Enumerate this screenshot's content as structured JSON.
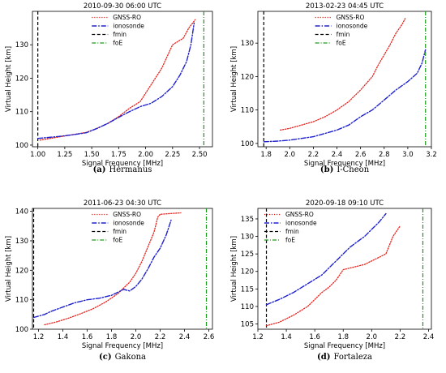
{
  "legend_labels": [
    "GNSS-RO",
    "ionosonde",
    "fmin",
    "foE"
  ],
  "colors": {
    "gnss": "#e8201a",
    "ionosonde": "#1f22cc",
    "fmin": "#000000",
    "foE": "#1a9a1a"
  },
  "chart_data": [
    {
      "type": "line",
      "title": "2010-09-30 06:00 UTC",
      "xlabel": "Signal Frequency [MHz]",
      "ylabel": "Virtual Height [km]",
      "caption_letter": "(a)",
      "caption_name": "Hermanus",
      "xlim": [
        0.95,
        2.62
      ],
      "ylim": [
        99.5,
        140
      ],
      "xticks": [
        1.0,
        1.25,
        1.5,
        1.75,
        2.0,
        2.25,
        2.5
      ],
      "xtick_labels": [
        "1.00",
        "1.25",
        "1.50",
        "1.75",
        "2.00",
        "2.25",
        "2.50"
      ],
      "yticks": [
        100,
        110,
        120,
        130
      ],
      "ytick_labels": [
        "100",
        "110",
        "120",
        "130"
      ],
      "legend": "upper-center",
      "fmin": 1.0,
      "foE": 2.54,
      "series": [
        {
          "name": "GNSS-RO",
          "style": "dotted",
          "x": [
            1.02,
            1.15,
            1.3,
            1.45,
            1.55,
            1.65,
            1.75,
            1.85,
            1.95,
            2.05,
            2.15,
            2.25,
            2.35,
            2.4,
            2.46
          ],
          "y": [
            101.5,
            102.2,
            103,
            103.8,
            105,
            106.5,
            108.5,
            111,
            113,
            118,
            123,
            130,
            132,
            135,
            137.5
          ]
        },
        {
          "name": "ionosonde",
          "style": "dashdot",
          "x": [
            1.0,
            1.1,
            1.2,
            1.3,
            1.45,
            1.55,
            1.65,
            1.75,
            1.85,
            1.95,
            2.05,
            2.15,
            2.25,
            2.32,
            2.38,
            2.42,
            2.45
          ],
          "y": [
            102,
            102.3,
            102.6,
            103,
            103.7,
            105,
            106.5,
            108.3,
            110,
            111.5,
            112.5,
            114.5,
            117.5,
            121,
            125,
            130,
            136.5
          ]
        }
      ]
    },
    {
      "type": "line",
      "title": "2013-02-23 04:45 UTC",
      "xlabel": "Signal Frequency [MHz]",
      "ylabel": "Virtual Height [km]",
      "caption_letter": "(b)",
      "caption_name": "I-Cheon",
      "xlim": [
        1.73,
        3.2
      ],
      "ylim": [
        99,
        139.5
      ],
      "xticks": [
        1.8,
        2.0,
        2.2,
        2.4,
        2.6,
        2.8,
        3.0,
        3.2
      ],
      "xtick_labels": [
        "1.8",
        "2.0",
        "2.2",
        "2.4",
        "2.6",
        "2.8",
        "3.0",
        "3.2"
      ],
      "yticks": [
        100,
        110,
        120,
        130
      ],
      "ytick_labels": [
        "100",
        "110",
        "120",
        "130"
      ],
      "legend": "upper-center",
      "fmin": 1.78,
      "foE": 3.15,
      "series": [
        {
          "name": "GNSS-RO",
          "style": "dotted",
          "x": [
            1.92,
            2.0,
            2.1,
            2.2,
            2.3,
            2.4,
            2.5,
            2.6,
            2.7,
            2.75,
            2.8,
            2.85,
            2.9,
            2.95,
            2.98
          ],
          "y": [
            104,
            104.5,
            105.5,
            106.5,
            108,
            110,
            112.5,
            116,
            120,
            123.5,
            126.5,
            129.5,
            133,
            135.5,
            137.5
          ]
        },
        {
          "name": "ionosonde",
          "style": "dashdot",
          "x": [
            1.78,
            1.9,
            2.0,
            2.1,
            2.2,
            2.3,
            2.4,
            2.5,
            2.6,
            2.7,
            2.8,
            2.9,
            3.0,
            3.08,
            3.12,
            3.15
          ],
          "y": [
            100.5,
            100.7,
            101,
            101.5,
            102,
            103,
            104,
            105.5,
            108,
            110,
            113,
            116,
            118.5,
            121,
            124,
            128
          ]
        }
      ]
    },
    {
      "type": "line",
      "title": "2011-06-23 04:30 UTC",
      "xlabel": "Signal Frequency [MHz]",
      "ylabel": "Virtual Height [km]",
      "caption_letter": "(c)",
      "caption_name": "Gakona",
      "xlim": [
        1.15,
        2.63
      ],
      "ylim": [
        100,
        141
      ],
      "xticks": [
        1.2,
        1.4,
        1.6,
        1.8,
        2.0,
        2.2,
        2.4,
        2.6
      ],
      "xtick_labels": [
        "1.2",
        "1.4",
        "1.6",
        "1.8",
        "2.0",
        "2.2",
        "2.4",
        "2.6"
      ],
      "yticks": [
        100,
        110,
        120,
        130,
        140
      ],
      "ytick_labels": [
        "100",
        "110",
        "120",
        "130",
        "140"
      ],
      "legend": "upper-center",
      "fmin": 1.16,
      "foE": 2.58,
      "series": [
        {
          "name": "GNSS-RO",
          "style": "dotted",
          "x": [
            1.25,
            1.35,
            1.45,
            1.55,
            1.65,
            1.75,
            1.85,
            1.95,
            2.0,
            2.05,
            2.1,
            2.15,
            2.18,
            2.2,
            2.3,
            2.37
          ],
          "y": [
            101.5,
            102.5,
            103.8,
            105.3,
            107,
            109.2,
            112,
            116,
            119,
            123,
            128,
            133,
            138,
            139,
            139.3,
            139.5
          ]
        },
        {
          "name": "ionosonde",
          "style": "dashdot",
          "x": [
            1.16,
            1.25,
            1.3,
            1.4,
            1.5,
            1.6,
            1.7,
            1.8,
            1.85,
            1.9,
            1.95,
            2.0,
            2.05,
            2.1,
            2.15,
            2.2,
            2.25,
            2.29
          ],
          "y": [
            104,
            105,
            106,
            107.5,
            109,
            110,
            110.5,
            111.5,
            112.5,
            113.5,
            113,
            114.5,
            117,
            120.5,
            124.5,
            127.5,
            132,
            137
          ]
        }
      ]
    },
    {
      "type": "line",
      "title": "2020-09-18 09:10 UTC",
      "xlabel": "Signal Frequency [MHz]",
      "ylabel": "Virtual Height [km]",
      "caption_letter": "(d)",
      "caption_name": "Fortaleza",
      "xlim": [
        1.2,
        2.42
      ],
      "ylim": [
        103.5,
        138
      ],
      "xticks": [
        1.2,
        1.4,
        1.6,
        1.8,
        2.0,
        2.2,
        2.4
      ],
      "xtick_labels": [
        "1.2",
        "1.4",
        "1.6",
        "1.8",
        "2.0",
        "2.2",
        "2.4"
      ],
      "yticks": [
        105,
        110,
        115,
        120,
        125,
        130,
        135
      ],
      "ytick_labels": [
        "105",
        "110",
        "115",
        "120",
        "125",
        "130",
        "135"
      ],
      "legend": "upper-left",
      "fmin": 1.26,
      "foE": 2.36,
      "series": [
        {
          "name": "GNSS-RO",
          "style": "dotted",
          "x": [
            1.26,
            1.35,
            1.45,
            1.55,
            1.6,
            1.65,
            1.7,
            1.75,
            1.8,
            1.85,
            1.9,
            1.95,
            2.0,
            2.05,
            2.1,
            2.15,
            2.2
          ],
          "y": [
            104.5,
            105.5,
            107.5,
            110,
            112,
            114,
            115.5,
            117.5,
            120.5,
            121,
            121.5,
            122,
            123,
            124,
            125,
            130,
            133
          ]
        },
        {
          "name": "ionosonde",
          "style": "dashdot",
          "x": [
            1.26,
            1.35,
            1.45,
            1.55,
            1.65,
            1.7,
            1.75,
            1.8,
            1.85,
            1.9,
            1.95,
            2.0,
            2.05,
            2.1
          ],
          "y": [
            110.5,
            112,
            114,
            116.5,
            119,
            121,
            123,
            125,
            127,
            128.5,
            130,
            132,
            134,
            136.5
          ]
        }
      ]
    }
  ]
}
